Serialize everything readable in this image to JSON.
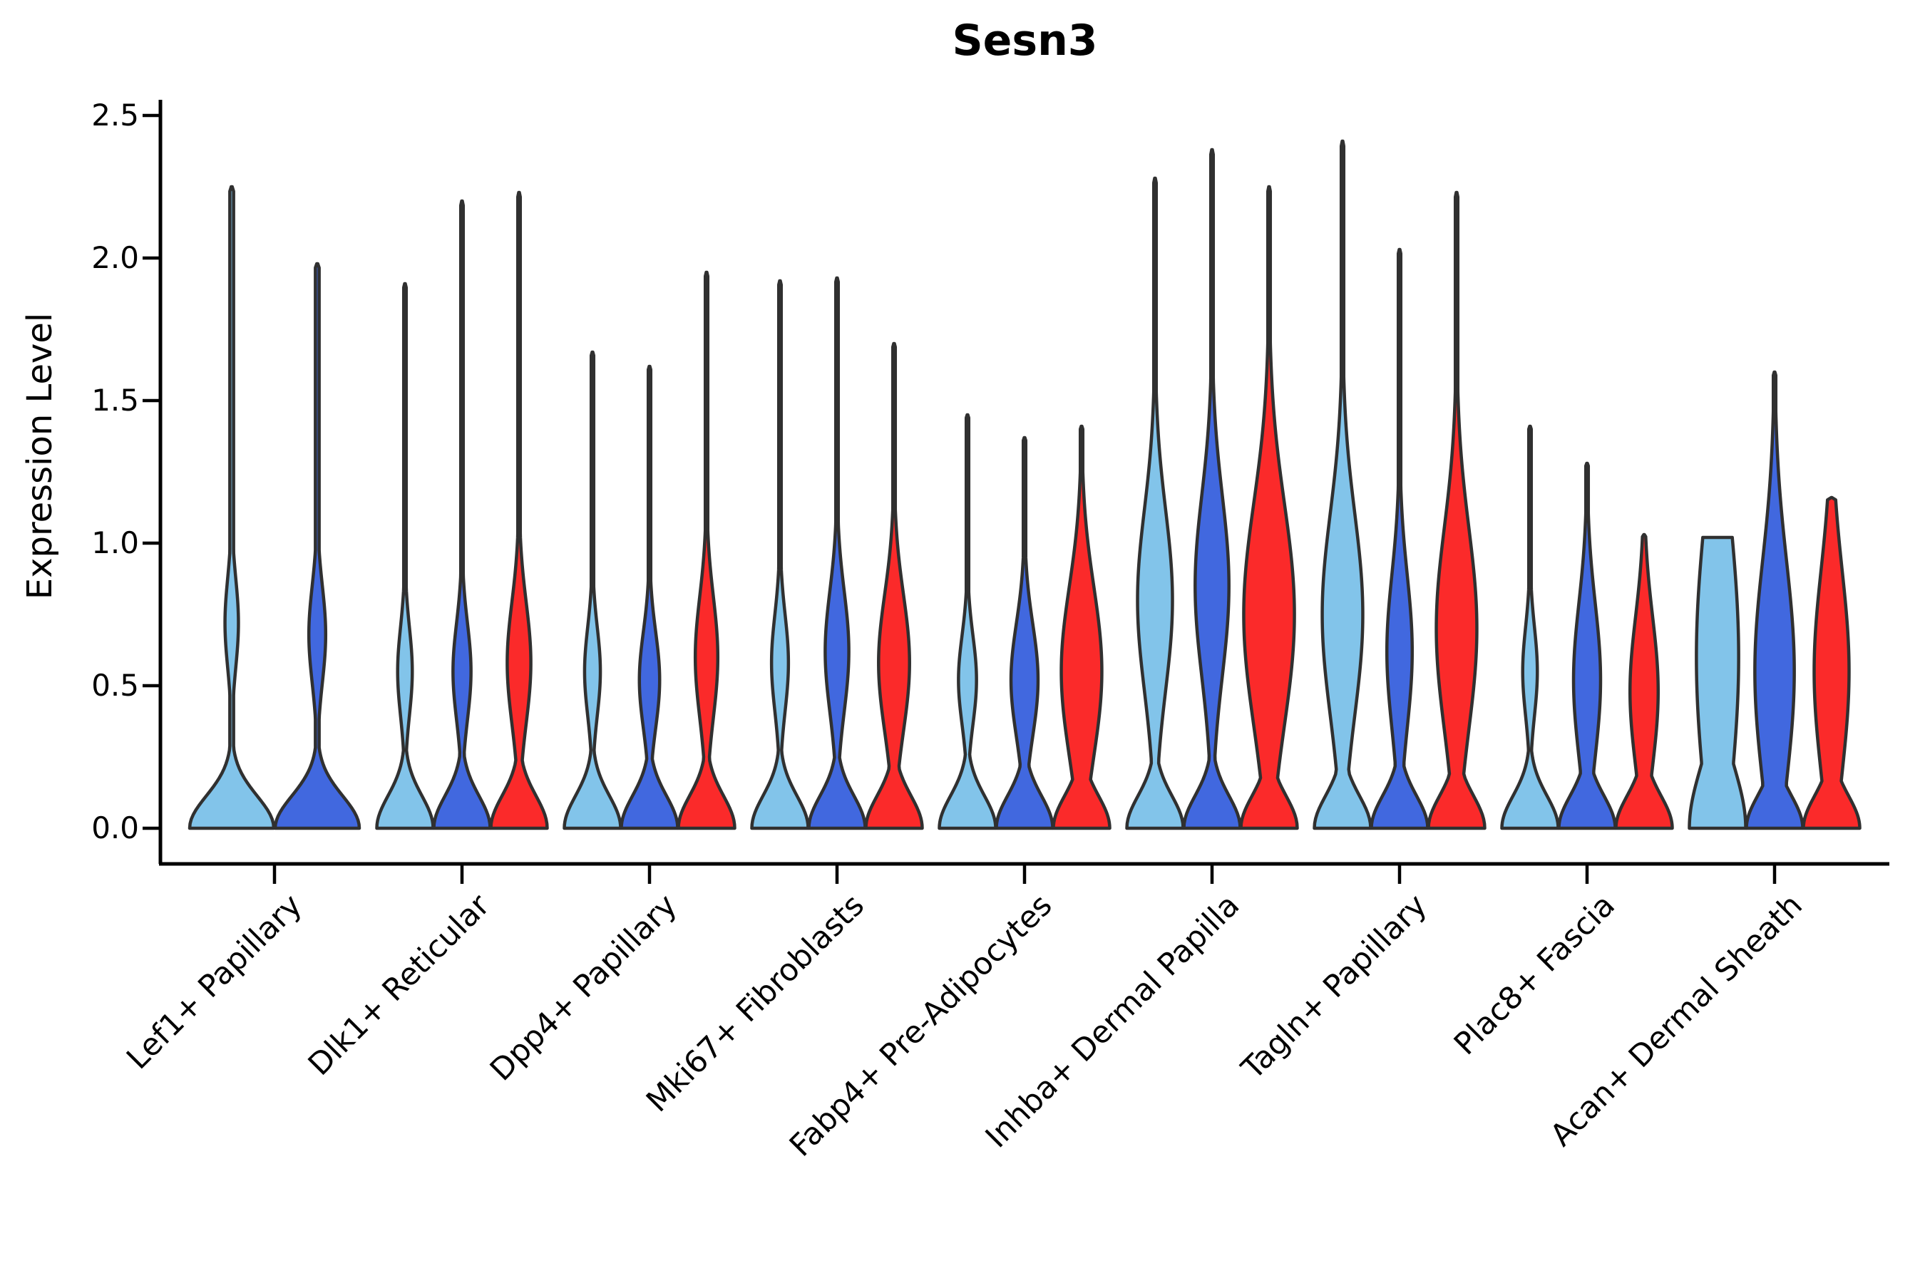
{
  "title": "Sesn3",
  "colors": {
    "light_blue": "#82C4EA",
    "dark_blue": "#4168DF",
    "red": "#FB2A2A",
    "outline": "#303030",
    "axis": "#000000"
  },
  "chart_data": {
    "type": "violin",
    "title": "Sesn3",
    "xlabel": "",
    "ylabel": "Expression Level",
    "ylim": [
      0.0,
      2.5
    ],
    "yticks": [
      "0.0",
      "0.5",
      "1.0",
      "1.5",
      "2.0",
      "2.5"
    ],
    "grid": false,
    "legend": "none",
    "categories": [
      "Lef1+ Papillary",
      "Dlk1+ Reticular",
      "Dpp4+ Papillary",
      "Mki67+ Fibroblasts",
      "Fabp4+ Pre-Adipocytes",
      "Inhba+ Dermal Papilla",
      "Tagln+ Papillary",
      "Plac8+ Fascia",
      "Acan+ Dermal Sheath"
    ],
    "base_sigma": 0.16,
    "base_sigma_flat": 0.3,
    "stem_halfwidth_frac": 0.045,
    "series": [
      {
        "name": "light_blue",
        "color_key": "light_blue",
        "max_expression": [
          2.25,
          1.91,
          1.67,
          1.92,
          1.45,
          2.28,
          2.41,
          1.41,
          1.02
        ],
        "bulge_amp": [
          0.16,
          0.26,
          0.28,
          0.3,
          0.32,
          0.62,
          0.72,
          0.26,
          0.75
        ],
        "bulge_center": [
          0.72,
          0.55,
          0.55,
          0.58,
          0.52,
          0.8,
          0.75,
          0.55,
          0.6
        ],
        "bulge_sigma": [
          0.22,
          0.22,
          0.22,
          0.24,
          0.22,
          0.45,
          0.5,
          0.22,
          0.7
        ],
        "flat_top": [
          false,
          false,
          false,
          false,
          false,
          false,
          false,
          false,
          true
        ]
      },
      {
        "name": "dark_blue",
        "color_key": "dark_blue",
        "max_expression": [
          1.98,
          2.2,
          1.62,
          1.93,
          1.37,
          2.38,
          2.03,
          1.28,
          1.6
        ],
        "bulge_amp": [
          0.2,
          0.32,
          0.36,
          0.42,
          0.48,
          0.6,
          0.45,
          0.48,
          0.7
        ],
        "bulge_center": [
          0.68,
          0.55,
          0.52,
          0.62,
          0.52,
          0.85,
          0.62,
          0.52,
          0.55
        ],
        "bulge_sigma": [
          0.24,
          0.24,
          0.24,
          0.3,
          0.28,
          0.45,
          0.38,
          0.38,
          0.55
        ],
        "flat_top": [
          false,
          false,
          false,
          false,
          false,
          false,
          false,
          false,
          false
        ]
      },
      {
        "name": "red",
        "color_key": "red",
        "max_expression": [
          null,
          2.23,
          1.95,
          1.7,
          1.41,
          2.25,
          2.23,
          1.03,
          1.16
        ],
        "bulge_amp": [
          null,
          0.42,
          0.4,
          0.55,
          0.72,
          0.9,
          0.72,
          0.5,
          0.62
        ],
        "bulge_center": [
          null,
          0.58,
          0.6,
          0.58,
          0.55,
          0.75,
          0.7,
          0.48,
          0.55
        ],
        "bulge_sigma": [
          null,
          0.3,
          0.3,
          0.34,
          0.42,
          0.55,
          0.5,
          0.37,
          0.5
        ],
        "flat_top": [
          false,
          false,
          false,
          false,
          false,
          false,
          false,
          false,
          false
        ]
      }
    ]
  }
}
